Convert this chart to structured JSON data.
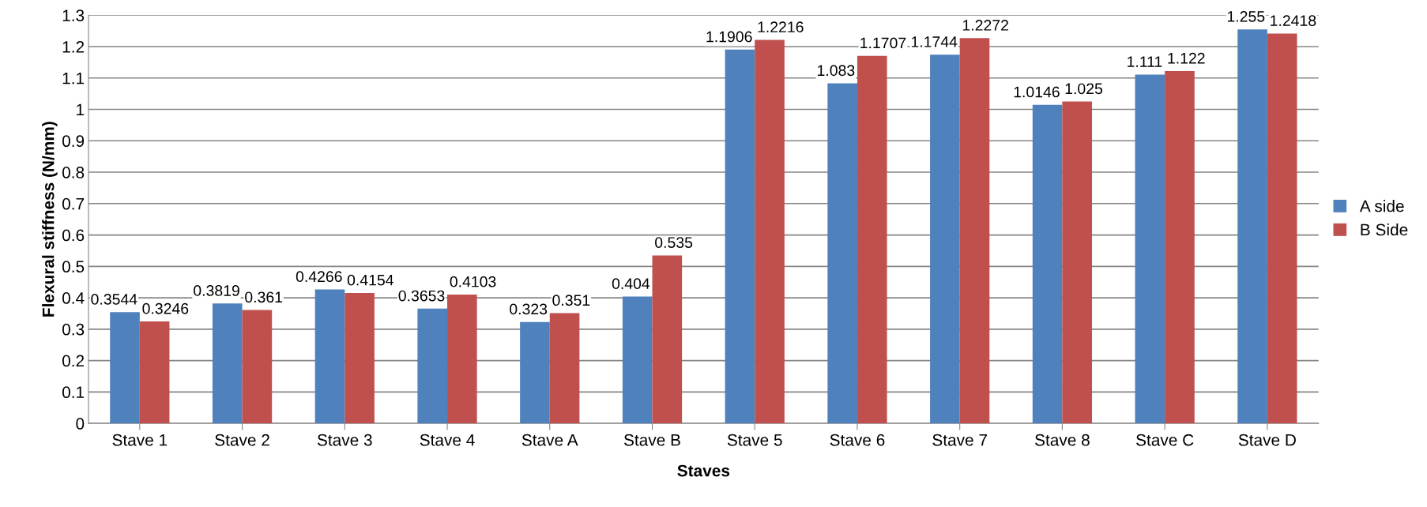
{
  "chart_data": {
    "type": "bar",
    "xlabel": "Staves",
    "ylabel": "Flexural stiffness (N/mm)",
    "categories": [
      "Stave 1",
      "Stave 2",
      "Stave 3",
      "Stave 4",
      "Stave A",
      "Stave B",
      "Stave 5",
      "Stave 6",
      "Stave 7",
      "Stave 8",
      "Stave C",
      "Stave D"
    ],
    "series": [
      {
        "name": "A side",
        "color": "#4f81bd",
        "values": [
          0.3544,
          0.3819,
          0.4266,
          0.3653,
          0.323,
          0.404,
          1.1906,
          1.083,
          1.1744,
          1.0146,
          1.111,
          1.255
        ]
      },
      {
        "name": "B Side",
        "color": "#c0504d",
        "values": [
          0.3246,
          0.361,
          0.4154,
          0.4103,
          0.351,
          0.535,
          1.2216,
          1.1707,
          1.2272,
          1.025,
          1.122,
          1.2418
        ]
      }
    ],
    "ylim": [
      0,
      1.3
    ],
    "yticks": [
      0,
      0.1,
      0.2,
      0.3,
      0.4,
      0.5,
      0.6,
      0.7,
      0.8,
      0.9,
      1,
      1.1,
      1.2,
      1.3
    ],
    "grid": "y",
    "legend": "right",
    "data_labels": true
  }
}
